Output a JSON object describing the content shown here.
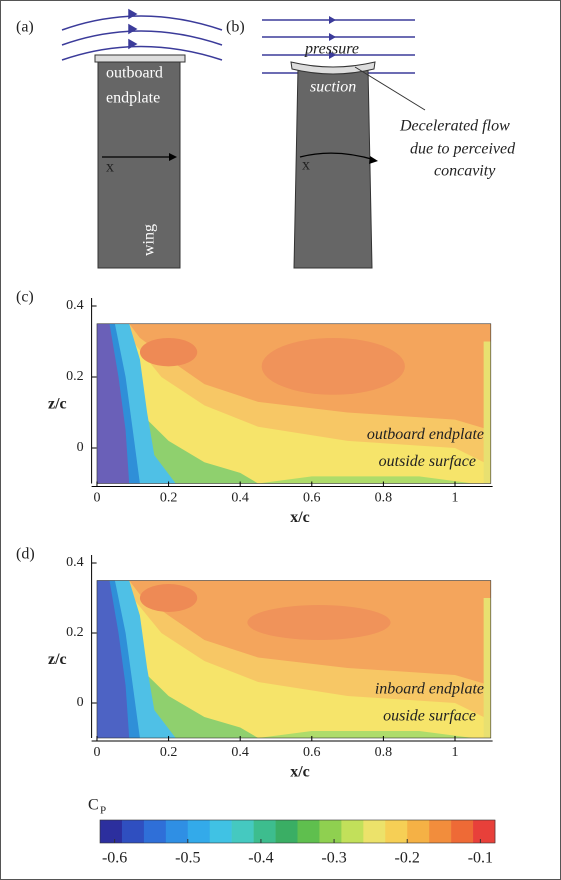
{
  "panel_a": {
    "label": "(a)",
    "endplate_label": [
      "outboard",
      "endplate"
    ],
    "x_label": "x",
    "wing_label": "wing"
  },
  "panel_b": {
    "label": "(b)",
    "pressure": "pressure",
    "suction": "suction",
    "x_label": "x",
    "annotation": [
      "Decelerated flow",
      "due to perceived",
      "concavity"
    ]
  },
  "chart_data": [
    {
      "type": "contour",
      "panel_label": "(c)",
      "xlabel": "x/c",
      "ylabel": "z/c",
      "annotation": [
        "outboard endplate",
        "outside surface"
      ],
      "xlim": [
        -0.015,
        1.105
      ],
      "ylim": [
        -0.1,
        0.4
      ],
      "xticks": [
        0,
        0.2,
        0.4,
        0.6,
        0.8,
        1
      ],
      "yticks": [
        0,
        0.2,
        0.4
      ]
    },
    {
      "type": "contour",
      "panel_label": "(d)",
      "xlabel": "x/c",
      "ylabel": "z/c",
      "annotation": [
        "inboard endplate",
        "ouside surface"
      ],
      "xlim": [
        -0.015,
        1.105
      ],
      "ylim": [
        -0.1,
        0.4
      ],
      "xticks": [
        0,
        0.2,
        0.4,
        0.6,
        0.8,
        1
      ],
      "yticks": [
        0,
        0.2,
        0.4
      ]
    }
  ],
  "colorbar": {
    "label": "C",
    "subscript": "P",
    "lim": [
      -0.62,
      -0.08
    ],
    "ticks": [
      -0.6,
      -0.5,
      -0.4,
      -0.3,
      -0.2,
      -0.1
    ]
  }
}
